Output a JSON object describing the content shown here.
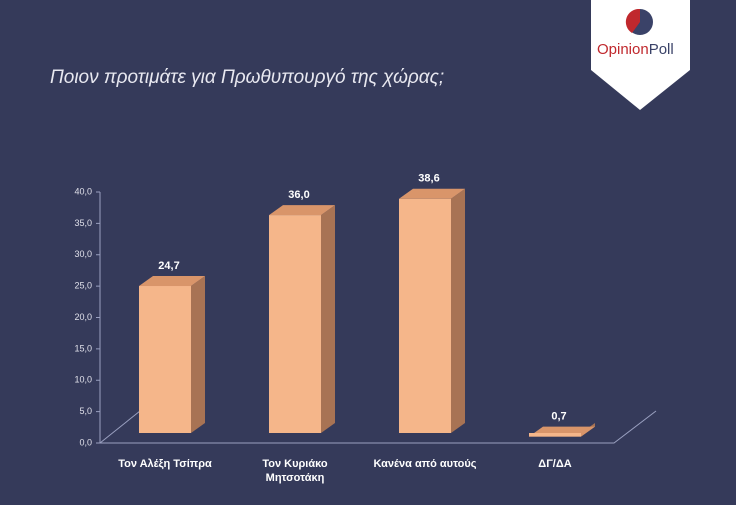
{
  "chart_data": {
    "type": "bar3d",
    "title": "Ποιον προτιμάτε για Πρωθυπουργό της χώρας;",
    "categories": [
      "Τον Αλέξη Τσίπρα",
      "Τον Κυριάκο Μητσοτάκη",
      "Κανένα από αυτούς",
      "ΔΓ/ΔΑ"
    ],
    "values": [
      24.7,
      36.0,
      38.6,
      0.7
    ],
    "value_labels": [
      "24,7",
      "36,0",
      "38,6",
      "0,7"
    ],
    "color": "#f5b68a",
    "ylim": [
      0,
      40
    ],
    "yticks": [
      {
        "value": 0,
        "label": "0,0"
      },
      {
        "value": 5,
        "label": "5,0"
      },
      {
        "value": 10,
        "label": "10,0"
      },
      {
        "value": 15,
        "label": "15,0"
      },
      {
        "value": 20,
        "label": "20,0"
      },
      {
        "value": 25,
        "label": "25,0"
      },
      {
        "value": 30,
        "label": "30,0"
      },
      {
        "value": 35,
        "label": "35,0"
      },
      {
        "value": 40,
        "label": "40,0"
      }
    ],
    "grid": false
  },
  "logo": {
    "first": "Opinion",
    "second": "Poll"
  }
}
